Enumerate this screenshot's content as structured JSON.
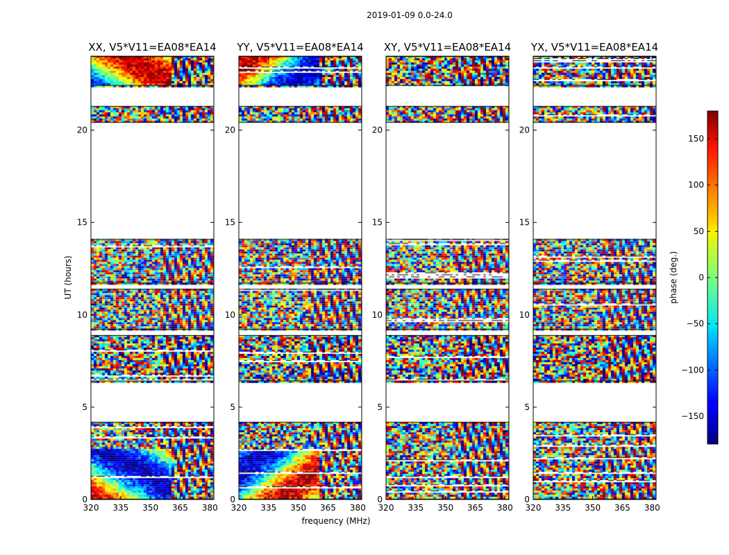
{
  "chart_data": {
    "type": "heatmap",
    "suptitle": "2019-01-09 0.0-24.0",
    "xlabel": "frequency (MHz)",
    "ylabel": "UT (hours)",
    "xlim": [
      320,
      382
    ],
    "ylim": [
      0,
      24
    ],
    "xticks": [
      "320",
      "335",
      "350",
      "365",
      "380"
    ],
    "xtick_values": [
      320,
      335,
      350,
      365,
      380
    ],
    "yticks": [
      "0",
      "5",
      "10",
      "15",
      "20"
    ],
    "ytick_values": [
      0,
      5,
      10,
      15,
      20
    ],
    "panels": [
      {
        "title": "XX, V5*V11=EA08*EA14",
        "pol": "XX"
      },
      {
        "title": "YY, V5*V11=EA08*EA14",
        "pol": "YY"
      },
      {
        "title": "XY, V5*V11=EA08*EA14",
        "pol": "XY"
      },
      {
        "title": "YX, V5*V11=EA08*EA14",
        "pol": "YX"
      }
    ],
    "colorbar": {
      "label": "phase (deg.)",
      "range": [
        -180,
        180
      ],
      "ticks": [
        "150",
        "100",
        "50",
        "0",
        "−50",
        "−100",
        "−150"
      ],
      "tick_values": [
        150,
        100,
        50,
        0,
        -50,
        -100,
        -150
      ],
      "colormap": "jet"
    },
    "data_segments_hours": [
      [
        0.0,
        4.2
      ],
      [
        6.4,
        8.9
      ],
      [
        9.2,
        11.4
      ],
      [
        11.7,
        14.1
      ],
      [
        20.4,
        21.3
      ],
      [
        22.4,
        24.0
      ]
    ],
    "flagged_gaps_hours": [
      [
        4.2,
        6.4
      ],
      [
        14.1,
        20.4
      ],
      [
        21.3,
        22.4
      ]
    ]
  }
}
